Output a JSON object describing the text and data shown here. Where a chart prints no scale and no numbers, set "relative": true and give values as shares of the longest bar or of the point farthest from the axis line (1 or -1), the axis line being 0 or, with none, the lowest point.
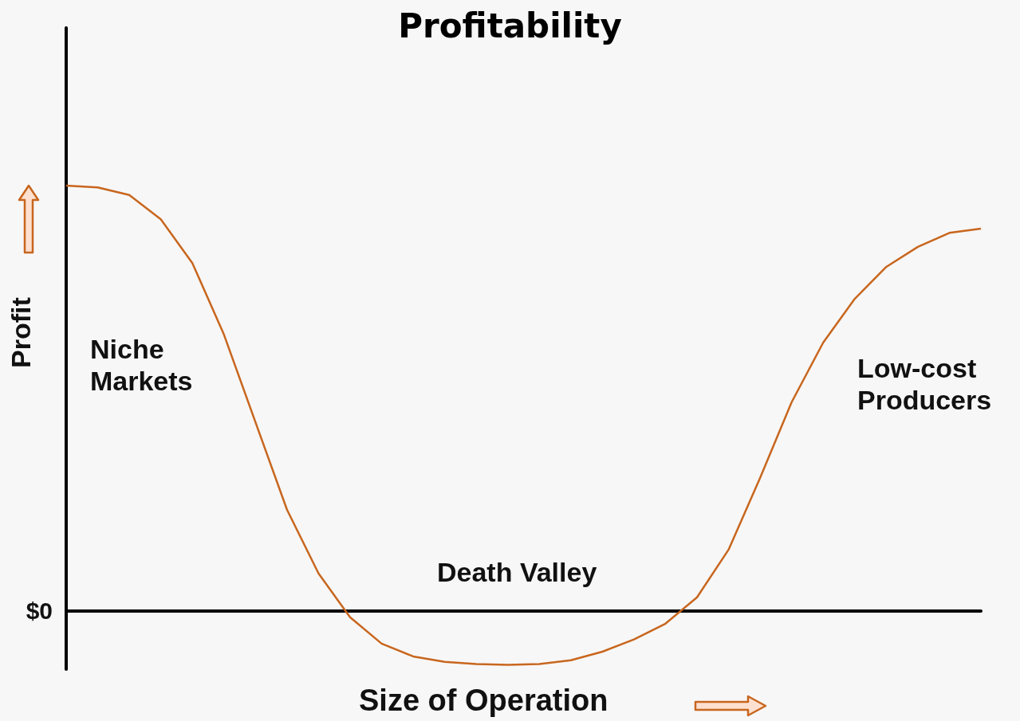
{
  "chart_data": {
    "type": "line",
    "title": "Profitability",
    "xlabel": "Size of Operation",
    "ylabel": "Profit",
    "relative": true,
    "marker": "none",
    "grid": false,
    "categories": [
      null,
      null,
      null,
      null,
      null,
      null,
      null,
      null,
      null,
      null,
      null,
      null,
      null,
      null,
      null,
      null,
      null,
      null,
      null,
      null,
      null,
      null,
      null,
      null,
      null,
      null,
      null,
      null,
      null,
      null
    ],
    "series": [
      {
        "color": "#c8661e",
        "values": [
          1.0,
          0.996,
          0.978,
          0.921,
          0.818,
          0.65,
          0.444,
          0.238,
          0.088,
          -0.015,
          -0.077,
          -0.107,
          -0.12,
          -0.125,
          -0.127,
          -0.125,
          -0.116,
          -0.096,
          -0.067,
          -0.03,
          0.032,
          0.144,
          0.313,
          0.491,
          0.631,
          0.734,
          0.809,
          0.856,
          0.889,
          0.899
        ]
      }
    ],
    "annotations": [
      "$0",
      "Niche Markets",
      "Death Valley",
      "Low-cost Producers"
    ]
  }
}
